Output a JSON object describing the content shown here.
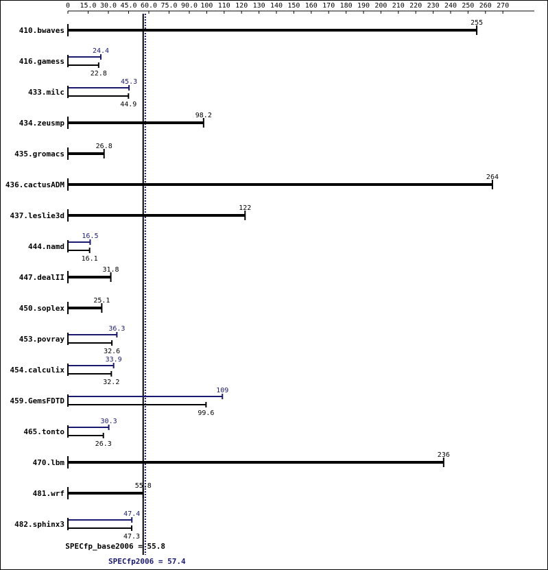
{
  "chart_data": {
    "type": "bar",
    "orientation": "horizontal",
    "x_ticks": [
      "0",
      "15.0",
      "30.0",
      "45.0",
      "60.0",
      "75.0",
      "90.0",
      "100",
      "110",
      "120",
      "130",
      "140",
      "150",
      "160",
      "170",
      "180",
      "190",
      "200",
      "210",
      "220",
      "230",
      "240",
      "250",
      "260",
      "270"
    ],
    "xlim": [
      0,
      270
    ],
    "categories": [
      "410.bwaves",
      "416.gamess",
      "433.milc",
      "434.zeusmp",
      "435.gromacs",
      "436.cactusADM",
      "437.leslie3d",
      "444.namd",
      "447.dealII",
      "450.soplex",
      "453.povray",
      "454.calculix",
      "459.GemsFDTD",
      "465.tonto",
      "470.lbm",
      "481.wrf",
      "482.sphinx3"
    ],
    "series": [
      {
        "name": "base",
        "color": "#000000",
        "values": [
          255,
          22.8,
          44.9,
          98.2,
          26.8,
          264,
          122,
          16.1,
          31.8,
          25.1,
          32.6,
          32.2,
          99.6,
          26.3,
          236,
          55.8,
          47.3
        ],
        "labels": [
          "255",
          "22.8",
          "44.9",
          "98.2",
          "26.8",
          "264",
          "122",
          "16.1",
          "31.8",
          "25.1",
          "32.6",
          "32.2",
          "99.6",
          "26.3",
          "236",
          "55.8",
          "47.3"
        ]
      },
      {
        "name": "peak",
        "color": "#191970",
        "values": [
          null,
          24.4,
          45.3,
          null,
          null,
          null,
          null,
          16.5,
          null,
          null,
          36.3,
          33.9,
          109,
          30.3,
          null,
          null,
          47.4
        ],
        "labels": [
          null,
          "24.4",
          "45.3",
          null,
          null,
          null,
          null,
          "16.5",
          null,
          null,
          "36.3",
          "33.9",
          "109",
          "30.3",
          null,
          null,
          "47.4"
        ]
      }
    ],
    "summary": [
      {
        "series": "base",
        "label": "SPECfp_base2006 = 55.8",
        "value": 55.8,
        "style": "solid"
      },
      {
        "series": "peak",
        "label": "SPECfp2006 = 57.4",
        "value": 57.4,
        "style": "dotted"
      }
    ],
    "grid": false,
    "title": "",
    "xlabel": "",
    "ylabel": ""
  }
}
